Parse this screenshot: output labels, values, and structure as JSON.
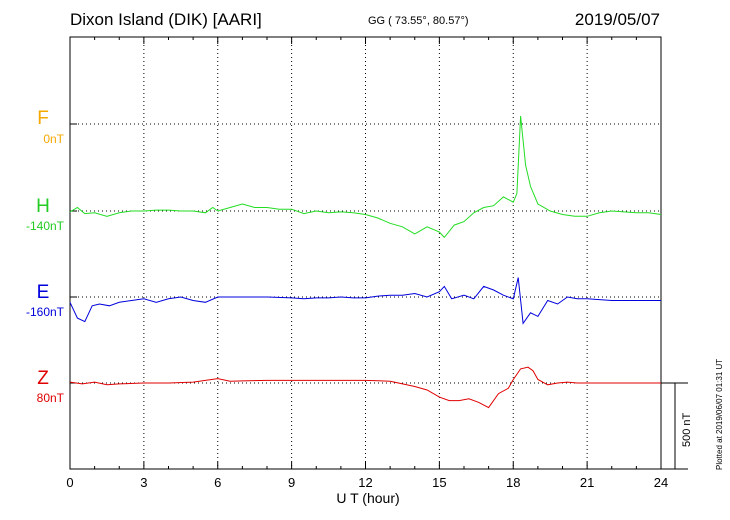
{
  "header": {
    "station": "Dixon Island (DIK)  [AARI]",
    "coords": "GG ( 73.55°,  80.57°)",
    "date": "2019/05/07"
  },
  "footer": {
    "plotted": "Plotted at 2019/06/07 01:31  UT",
    "scale": "500 nT"
  },
  "chart_data": {
    "type": "line",
    "xlabel": "U T (hour)",
    "xlim": [
      0,
      24
    ],
    "xticks": [
      "0",
      "3",
      "6",
      "9",
      "12",
      "15",
      "18",
      "21",
      "24"
    ],
    "scale_bar_nT": 500,
    "series": [
      {
        "name": "F",
        "baseline": "0nT",
        "color": "#f5a800",
        "values": []
      },
      {
        "name": "H",
        "baseline": "-140nT",
        "color": "#22dd22",
        "values": [
          [
            0,
            -145
          ],
          [
            0.3,
            -120
          ],
          [
            0.6,
            -155
          ],
          [
            1,
            -150
          ],
          [
            1.5,
            -170
          ],
          [
            2,
            -150
          ],
          [
            2.5,
            -140
          ],
          [
            3,
            -140
          ],
          [
            3.5,
            -135
          ],
          [
            4,
            -135
          ],
          [
            4.5,
            -140
          ],
          [
            5,
            -140
          ],
          [
            5.5,
            -150
          ],
          [
            5.8,
            -120
          ],
          [
            6,
            -140
          ],
          [
            6.5,
            -120
          ],
          [
            7,
            -100
          ],
          [
            7.5,
            -120
          ],
          [
            8,
            -120
          ],
          [
            8.5,
            -130
          ],
          [
            9,
            -130
          ],
          [
            9.5,
            -155
          ],
          [
            10,
            -140
          ],
          [
            10.5,
            -150
          ],
          [
            11,
            -145
          ],
          [
            11.5,
            -150
          ],
          [
            12,
            -160
          ],
          [
            12.5,
            -180
          ],
          [
            13,
            -210
          ],
          [
            13.5,
            -230
          ],
          [
            14,
            -270
          ],
          [
            14.5,
            -230
          ],
          [
            15,
            -260
          ],
          [
            15.2,
            -290
          ],
          [
            15.6,
            -220
          ],
          [
            16,
            -200
          ],
          [
            16.4,
            -150
          ],
          [
            16.8,
            -120
          ],
          [
            17.2,
            -110
          ],
          [
            17.6,
            -60
          ],
          [
            18,
            -90
          ],
          [
            18.15,
            -40
          ],
          [
            18.3,
            400
          ],
          [
            18.5,
            120
          ],
          [
            18.7,
            0
          ],
          [
            19,
            -100
          ],
          [
            19.5,
            -140
          ],
          [
            20,
            -160
          ],
          [
            20.5,
            -170
          ],
          [
            21,
            -170
          ],
          [
            21.5,
            -150
          ],
          [
            22,
            -140
          ],
          [
            22.5,
            -145
          ],
          [
            23,
            -150
          ],
          [
            23.5,
            -150
          ],
          [
            24,
            -160
          ]
        ]
      },
      {
        "name": "E",
        "baseline": "-160nT",
        "color": "#0000dd",
        "values": [
          [
            0,
            -190
          ],
          [
            0.3,
            -280
          ],
          [
            0.6,
            -300
          ],
          [
            0.9,
            -210
          ],
          [
            1.2,
            -200
          ],
          [
            1.6,
            -210
          ],
          [
            2,
            -190
          ],
          [
            2.5,
            -180
          ],
          [
            3,
            -170
          ],
          [
            3.5,
            -190
          ],
          [
            4,
            -170
          ],
          [
            4.5,
            -160
          ],
          [
            5,
            -180
          ],
          [
            5.5,
            -190
          ],
          [
            6,
            -160
          ],
          [
            6.5,
            -160
          ],
          [
            7,
            -160
          ],
          [
            8,
            -160
          ],
          [
            9,
            -165
          ],
          [
            9.5,
            -170
          ],
          [
            10,
            -165
          ],
          [
            10.5,
            -165
          ],
          [
            11,
            -160
          ],
          [
            11.5,
            -165
          ],
          [
            12,
            -165
          ],
          [
            12.5,
            -155
          ],
          [
            13,
            -150
          ],
          [
            13.5,
            -150
          ],
          [
            14,
            -140
          ],
          [
            14.5,
            -160
          ],
          [
            15,
            -130
          ],
          [
            15.2,
            -100
          ],
          [
            15.5,
            -170
          ],
          [
            16,
            -150
          ],
          [
            16.4,
            -170
          ],
          [
            16.8,
            -100
          ],
          [
            17.2,
            -120
          ],
          [
            17.6,
            -150
          ],
          [
            18,
            -170
          ],
          [
            18.2,
            -50
          ],
          [
            18.4,
            -310
          ],
          [
            18.7,
            -250
          ],
          [
            19,
            -270
          ],
          [
            19.4,
            -180
          ],
          [
            19.8,
            -200
          ],
          [
            20.2,
            -160
          ],
          [
            20.6,
            -170
          ],
          [
            21,
            -170
          ],
          [
            21.5,
            -175
          ],
          [
            22,
            -180
          ],
          [
            22.5,
            -180
          ],
          [
            23,
            -180
          ],
          [
            23.5,
            -180
          ],
          [
            24,
            -180
          ]
        ]
      },
      {
        "name": "Z",
        "baseline": "80nT",
        "color": "#e00000",
        "values": [
          [
            0,
            85
          ],
          [
            0.5,
            75
          ],
          [
            1,
            85
          ],
          [
            1.5,
            70
          ],
          [
            2,
            75
          ],
          [
            3,
            80
          ],
          [
            4,
            80
          ],
          [
            5,
            85
          ],
          [
            5.5,
            95
          ],
          [
            6,
            105
          ],
          [
            6.5,
            90
          ],
          [
            7,
            92
          ],
          [
            8,
            95
          ],
          [
            9,
            95
          ],
          [
            10,
            95
          ],
          [
            11,
            95
          ],
          [
            12,
            95
          ],
          [
            13,
            90
          ],
          [
            14,
            60
          ],
          [
            14.5,
            40
          ],
          [
            15,
            0
          ],
          [
            15.4,
            -20
          ],
          [
            15.8,
            -20
          ],
          [
            16.2,
            -10
          ],
          [
            16.6,
            -30
          ],
          [
            17,
            -60
          ],
          [
            17.4,
            20
          ],
          [
            17.8,
            50
          ],
          [
            18,
            100
          ],
          [
            18.3,
            160
          ],
          [
            18.6,
            170
          ],
          [
            18.8,
            150
          ],
          [
            19,
            100
          ],
          [
            19.4,
            70
          ],
          [
            19.8,
            80
          ],
          [
            20.2,
            85
          ],
          [
            20.6,
            80
          ],
          [
            21,
            80
          ],
          [
            22,
            80
          ],
          [
            23,
            80
          ],
          [
            24,
            80
          ]
        ]
      }
    ]
  }
}
